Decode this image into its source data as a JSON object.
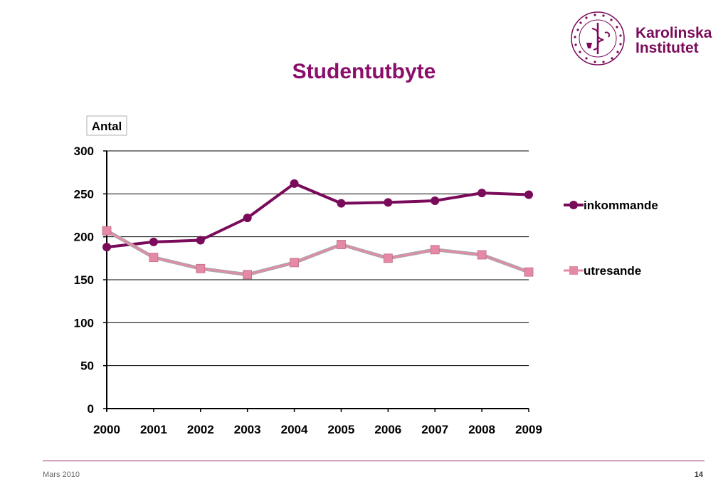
{
  "header": {
    "logo_text_line1": "Karolinska",
    "logo_text_line2": "Institutet",
    "seal_text": "KAROLINSKA INSTITUTET · ANNO 1810"
  },
  "slide": {
    "title": "Studentutbyte"
  },
  "chart_data": {
    "type": "line",
    "ylabel": "Antal",
    "ylim": [
      0,
      300
    ],
    "yticks": [
      0,
      50,
      100,
      150,
      200,
      250,
      300
    ],
    "categories": [
      "2000",
      "2001",
      "2002",
      "2003",
      "2004",
      "2005",
      "2006",
      "2007",
      "2008",
      "2009"
    ],
    "grid": true,
    "legend_position": "right",
    "series": [
      {
        "name": "inkommande",
        "values": [
          188,
          194,
          196,
          222,
          262,
          239,
          240,
          242,
          251,
          249
        ],
        "color": "#7a0b5a",
        "marker": "circle"
      },
      {
        "name": "utresande",
        "values": [
          207,
          176,
          163,
          156,
          170,
          191,
          175,
          185,
          179,
          159
        ],
        "color": "#e58aa5",
        "marker": "square"
      }
    ]
  },
  "footer": {
    "date": "Mars 2010",
    "page": "14"
  }
}
